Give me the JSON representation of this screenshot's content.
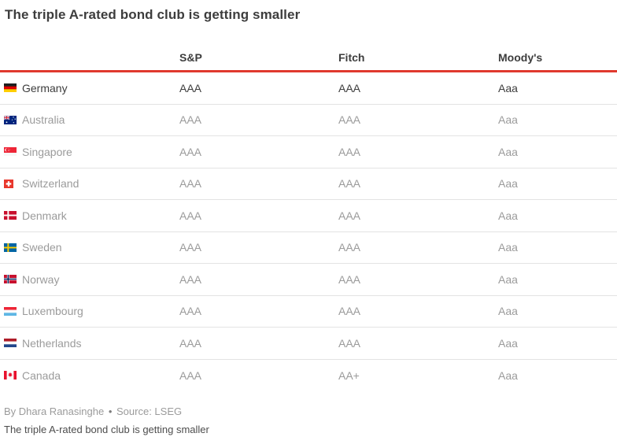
{
  "title": "The triple A-rated bond club is getting smaller",
  "chart_data": {
    "type": "table",
    "title": "The triple A-rated bond club is getting smaller",
    "columns": [
      "S&P",
      "Fitch",
      "Moody's"
    ],
    "rows": [
      {
        "country": "Germany",
        "flag": "flag-germany",
        "ratings": [
          "AAA",
          "AAA",
          "Aaa"
        ],
        "highlight": true
      },
      {
        "country": "Australia",
        "flag": "flag-australia",
        "ratings": [
          "AAA",
          "AAA",
          "Aaa"
        ],
        "highlight": false
      },
      {
        "country": "Singapore",
        "flag": "flag-singapore",
        "ratings": [
          "AAA",
          "AAA",
          "Aaa"
        ],
        "highlight": false
      },
      {
        "country": "Switzerland",
        "flag": "flag-switzerland",
        "ratings": [
          "AAA",
          "AAA",
          "Aaa"
        ],
        "highlight": false
      },
      {
        "country": "Denmark",
        "flag": "flag-denmark",
        "ratings": [
          "AAA",
          "AAA",
          "Aaa"
        ],
        "highlight": false
      },
      {
        "country": "Sweden",
        "flag": "flag-sweden",
        "ratings": [
          "AAA",
          "AAA",
          "Aaa"
        ],
        "highlight": false
      },
      {
        "country": "Norway",
        "flag": "flag-norway",
        "ratings": [
          "AAA",
          "AAA",
          "Aaa"
        ],
        "highlight": false
      },
      {
        "country": "Luxembourg",
        "flag": "flag-luxembourg",
        "ratings": [
          "AAA",
          "AAA",
          "Aaa"
        ],
        "highlight": false
      },
      {
        "country": "Netherlands",
        "flag": "flag-netherlands",
        "ratings": [
          "AAA",
          "AAA",
          "Aaa"
        ],
        "highlight": false
      },
      {
        "country": "Canada",
        "flag": "flag-canada",
        "ratings": [
          "AAA",
          "AA+",
          "Aaa"
        ],
        "highlight": false
      }
    ]
  },
  "footer": {
    "byline": "By Dhara Ranasinghe",
    "separator": "•",
    "source": "Source: LSEG",
    "caption": "The triple A-rated bond club is getting smaller"
  },
  "colors": {
    "accent_red": "#e0392e",
    "dark_text": "#3d3d3d",
    "muted_text": "#9b9b9b",
    "row_line": "#e3e3e3"
  }
}
